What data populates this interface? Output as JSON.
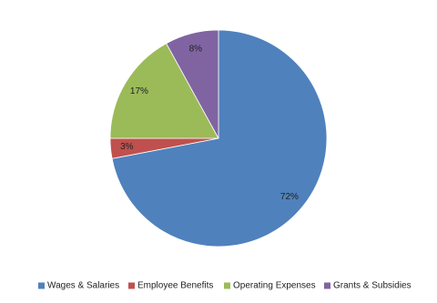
{
  "chart_data": {
    "type": "pie",
    "categories": [
      "Wages & Salaries",
      "Employee Benefits",
      "Operating Expenses",
      "Grants & Subsidies"
    ],
    "values": [
      72,
      3,
      17,
      8
    ],
    "value_labels": [
      "72%",
      "3%",
      "17%",
      "8%"
    ],
    "colors": [
      "#4f81bd",
      "#c0504d",
      "#9bbb59",
      "#8064a2"
    ],
    "legend": "bottom"
  }
}
